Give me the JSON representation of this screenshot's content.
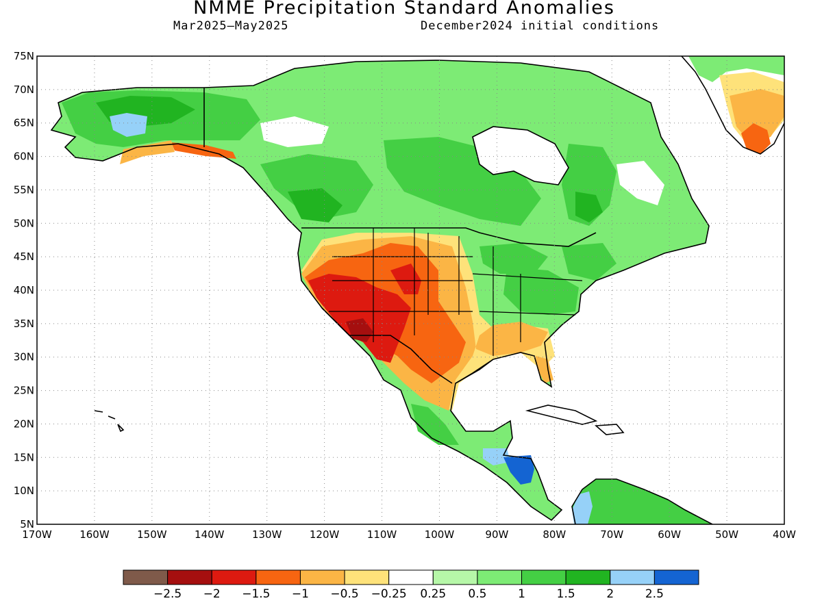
{
  "title": "NMME Precipitation Standard Anomalies",
  "subtitle_left": "Mar2025–May2025",
  "subtitle_right": "December2024 initial conditions",
  "map": {
    "projection": "equirectangular",
    "lon_range": [
      -170,
      -40
    ],
    "lat_range": [
      5,
      75
    ],
    "lat_labels": [
      "75N",
      "70N",
      "65N",
      "60N",
      "55N",
      "50N",
      "45N",
      "40N",
      "35N",
      "30N",
      "25N",
      "20N",
      "15N",
      "10N",
      "5N"
    ],
    "lon_labels": [
      "170W",
      "160W",
      "150W",
      "140W",
      "130W",
      "120W",
      "110W",
      "100W",
      "90W",
      "80W",
      "70W",
      "60W",
      "50W",
      "40W"
    ],
    "grid": "dotted",
    "variable": "Precipitation Standard Anomalies"
  },
  "colorbar": {
    "colors": [
      "#7f5a4a",
      "#a50f0f",
      "#dd1a10",
      "#f76511",
      "#fbb545",
      "#fee27a",
      "#ffffff",
      "#b6f7a8",
      "#7deb75",
      "#44cf44",
      "#21b421",
      "#96d1f8",
      "#1464d2"
    ],
    "labels": [
      "−2.5",
      "−2",
      "−1.5",
      "−1",
      "−0.5",
      "−0.25",
      "0.25",
      "0.5",
      "1",
      "1.5",
      "2",
      "2.5"
    ]
  }
}
